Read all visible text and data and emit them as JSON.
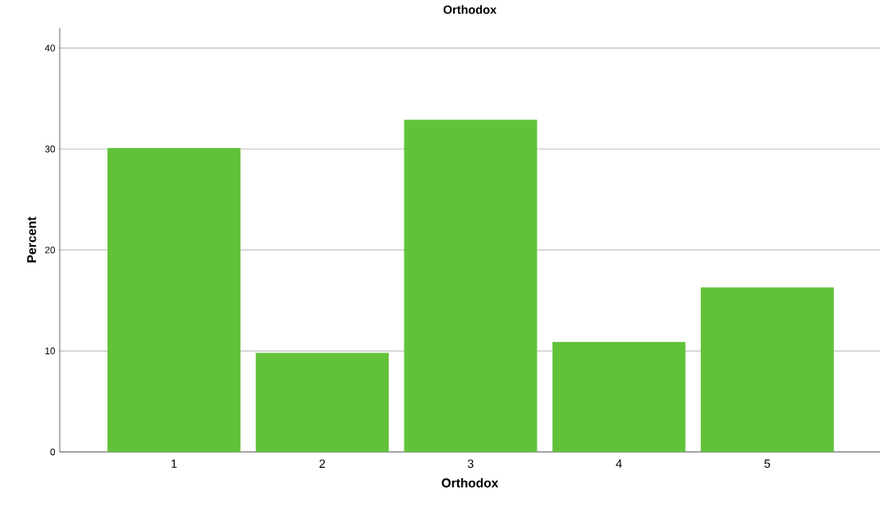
{
  "chart_data": {
    "type": "bar",
    "title": "Orthodox",
    "xlabel": "Orthodox",
    "ylabel": "Percent",
    "categories": [
      "1",
      "2",
      "3",
      "4",
      "5"
    ],
    "values": [
      30.1,
      9.8,
      32.9,
      10.9,
      16.3
    ],
    "color": "#61c23a",
    "ylim": [
      0,
      42
    ],
    "yticks": [
      0,
      10,
      20,
      30,
      40
    ],
    "grid": "y"
  }
}
